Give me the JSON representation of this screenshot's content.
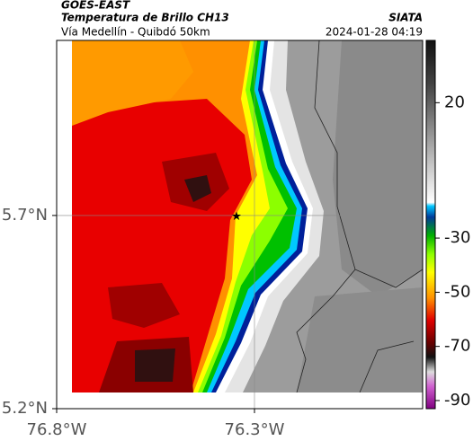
{
  "header": {
    "title": "GOES-EAST",
    "subtitle": "Temperatura de Brillo CH13",
    "brand": "SIATA",
    "route": "Vía Medellín - Quibdó 50km",
    "timestamp": "2024-01-28 04:19"
  },
  "map": {
    "xlim": [
      -76.8,
      -75.875
    ],
    "ylim": [
      5.2,
      6.153
    ],
    "xticks": [
      {
        "value": -76.8,
        "label": "76.8°W"
      },
      {
        "value": -76.3,
        "label": "76.3°W"
      }
    ],
    "yticks": [
      {
        "value": 5.2,
        "label": "5.2°N"
      },
      {
        "value": 5.7,
        "label": "5.7°N"
      }
    ],
    "grid": true
  },
  "colorbar": {
    "lim": [
      -93,
      43
    ],
    "ticks": [
      20,
      -30,
      -50,
      -70,
      -90
    ]
  }
}
